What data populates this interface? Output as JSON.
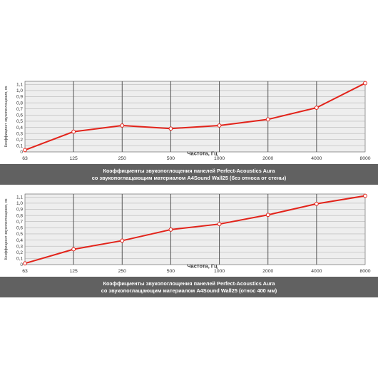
{
  "chart_data": [
    {
      "type": "line",
      "x": [
        "63",
        "125",
        "250",
        "500",
        "1000",
        "2000",
        "4000",
        "8000"
      ],
      "values": [
        0.03,
        0.33,
        0.43,
        0.38,
        0.43,
        0.53,
        0.72,
        1.12
      ],
      "xlabel": "Частота, Гц",
      "ylabel": "Коэффициент звукопоглощения, αs",
      "yticks": [
        "0",
        "0,1",
        "0,2",
        "0,3",
        "0,4",
        "0,5",
        "0,6",
        "0,7",
        "0,8",
        "0,9",
        "1,0",
        "1,1"
      ],
      "ylim": [
        0,
        1.15
      ],
      "grid": true,
      "line_color": "#e2231a",
      "caption": [
        "Коэффициенты звукопоглощения панелей Perfect-Acoustics Aura",
        "со звукопоглащающим материалом A4Sound Wall25 (без относа от стены)"
      ]
    },
    {
      "type": "line",
      "x": [
        "63",
        "125",
        "250",
        "500",
        "1000",
        "2000",
        "4000",
        "8000"
      ],
      "values": [
        0.02,
        0.25,
        0.39,
        0.57,
        0.66,
        0.81,
        0.99,
        1.12
      ],
      "xlabel": "Частота, Гц",
      "ylabel": "Коэффициент звукопоглощения, αs",
      "yticks": [
        "0",
        "0,1",
        "0,2",
        "0,3",
        "0,4",
        "0,5",
        "0,6",
        "0,7",
        "0,8",
        "0,9",
        "1,0",
        "1,1"
      ],
      "ylim": [
        0,
        1.15
      ],
      "grid": true,
      "line_color": "#e2231a",
      "caption": [
        "Коэффициенты звукопоглощения панелей Perfect-Acoustics Aura",
        "со звукопоглащающим материалом A4Sound Wall25 (относ 400 мм)"
      ]
    }
  ],
  "colors": {
    "plot_background": "#eeeeee",
    "grid_line": "#555555",
    "caption_background": "#616161",
    "caption_text": "#ffffff"
  }
}
